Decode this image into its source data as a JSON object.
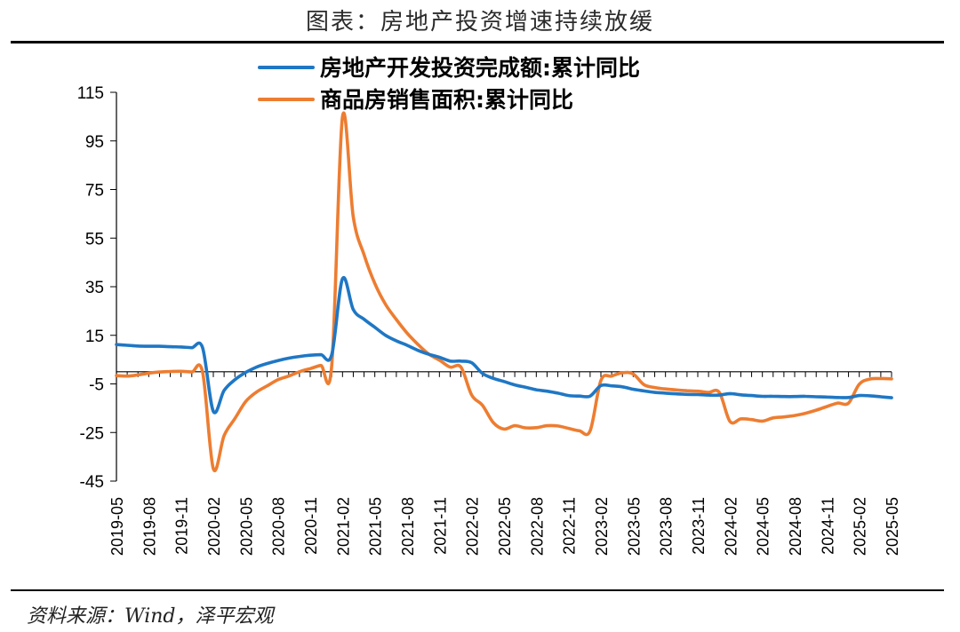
{
  "title": "图表：房地产投资增速持续放缓",
  "source": "资料来源：Wind，泽平宏观",
  "chart_data": {
    "type": "line",
    "x": [
      "2019-05",
      "2019-06",
      "2019-07",
      "2019-08",
      "2019-09",
      "2019-10",
      "2019-11",
      "2019-12",
      "2020-01",
      "2020-02",
      "2020-03",
      "2020-04",
      "2020-05",
      "2020-06",
      "2020-07",
      "2020-08",
      "2020-09",
      "2020-10",
      "2020-11",
      "2020-12",
      "2021-01",
      "2021-02",
      "2021-03",
      "2021-04",
      "2021-05",
      "2021-06",
      "2021-07",
      "2021-08",
      "2021-09",
      "2021-10",
      "2021-11",
      "2021-12",
      "2022-01",
      "2022-02",
      "2022-03",
      "2022-04",
      "2022-05",
      "2022-06",
      "2022-07",
      "2022-08",
      "2022-09",
      "2022-10",
      "2022-11",
      "2022-12",
      "2023-01",
      "2023-02",
      "2023-03",
      "2023-04",
      "2023-05",
      "2023-06",
      "2023-07",
      "2023-08",
      "2023-09",
      "2023-10",
      "2023-11",
      "2023-12",
      "2024-01",
      "2024-02",
      "2024-03",
      "2024-04",
      "2024-05",
      "2024-06",
      "2024-07",
      "2024-08",
      "2024-09",
      "2024-10",
      "2024-11",
      "2024-12",
      "2025-01",
      "2025-02",
      "2025-03",
      "2025-04",
      "2025-05"
    ],
    "x_tick_labels": [
      "2019-05",
      "2019-08",
      "2019-11",
      "2020-02",
      "2020-05",
      "2020-08",
      "2020-11",
      "2021-02",
      "2021-05",
      "2021-08",
      "2021-11",
      "2022-02",
      "2022-05",
      "2022-08",
      "2022-11",
      "2023-02",
      "2023-05",
      "2023-08",
      "2023-11",
      "2024-02",
      "2024-05",
      "2024-08",
      "2024-11",
      "2025-02",
      "2025-05"
    ],
    "series": [
      {
        "name": "房地产开发投资完成额:累计同比",
        "color": "#1f77c4",
        "values": [
          11.2,
          10.9,
          10.6,
          10.5,
          10.5,
          10.3,
          10.2,
          9.9,
          9.9,
          -16.3,
          -7.7,
          -3.3,
          -0.3,
          1.9,
          3.4,
          4.6,
          5.6,
          6.3,
          6.8,
          7.0,
          7.0,
          38.3,
          25.6,
          21.6,
          18.3,
          15.0,
          12.7,
          10.9,
          8.8,
          7.2,
          6.0,
          4.4,
          4.4,
          3.7,
          -0.7,
          -2.7,
          -4.0,
          -5.4,
          -6.4,
          -7.4,
          -8.0,
          -8.8,
          -9.8,
          -10.0,
          -10.0,
          -5.7,
          -5.8,
          -6.2,
          -7.2,
          -7.9,
          -8.5,
          -8.8,
          -9.1,
          -9.3,
          -9.4,
          -9.6,
          -9.6,
          -9.0,
          -9.5,
          -9.8,
          -10.1,
          -10.1,
          -10.2,
          -10.2,
          -10.1,
          -10.3,
          -10.4,
          -10.6,
          -10.6,
          -9.8,
          -9.9,
          -10.3,
          -10.7
        ],
        "show_in_legend": true
      },
      {
        "name": "商品房销售面积:累计同比",
        "color": "#ed7d31",
        "values": [
          -1.6,
          -1.8,
          -1.3,
          -0.6,
          -0.1,
          0.1,
          0.2,
          -0.1,
          -0.1,
          -39.9,
          -26.3,
          -19.3,
          -12.3,
          -8.4,
          -5.8,
          -3.3,
          -1.8,
          0.0,
          1.3,
          2.6,
          2.6,
          104.9,
          63.8,
          48.1,
          36.3,
          27.7,
          21.5,
          15.9,
          11.3,
          7.3,
          4.8,
          1.9,
          1.9,
          -9.6,
          -13.8,
          -20.9,
          -23.6,
          -22.2,
          -23.1,
          -23.0,
          -22.2,
          -22.3,
          -23.3,
          -24.3,
          -24.3,
          -3.6,
          -1.8,
          -0.4,
          -0.9,
          -5.3,
          -6.5,
          -7.1,
          -7.5,
          -7.8,
          -8.0,
          -8.5,
          -8.5,
          -20.5,
          -19.4,
          -19.7,
          -20.3,
          -19.0,
          -18.6,
          -18.0,
          -17.1,
          -15.8,
          -14.3,
          -12.9,
          -12.9,
          -5.1,
          -3.0,
          -2.8,
          -2.9
        ],
        "show_in_legend": true
      }
    ],
    "y_ticks": [
      115,
      95,
      75,
      55,
      35,
      15,
      -5,
      -25,
      -45
    ],
    "ylim": [
      -45,
      115
    ],
    "legend_position": "top-center",
    "grid": false
  }
}
